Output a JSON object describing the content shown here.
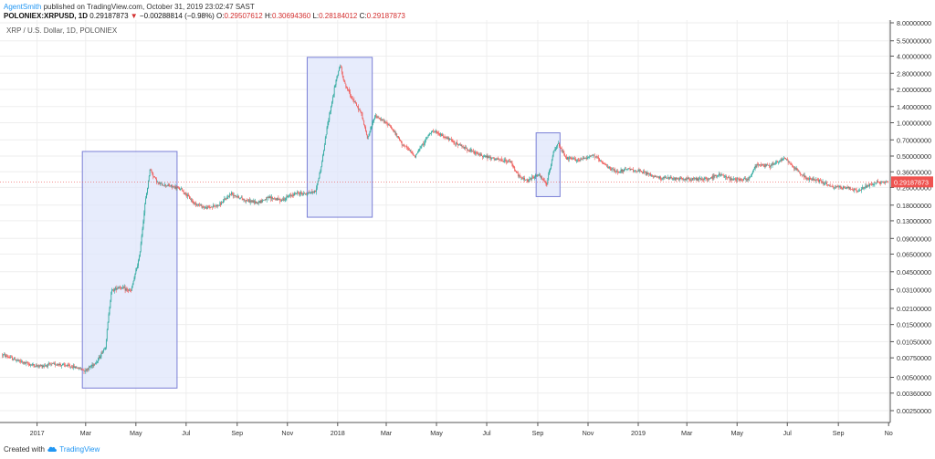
{
  "header": {
    "author": "AgentSmith",
    "published_text": "published on TradingView.com, October 31, 2019 23:02:47 SAST",
    "symbol": "POLONIEX:XRPUSD, 1D",
    "last": "0.29187873",
    "change": "−0.00288814 (−0.98%)",
    "o_label": "O:",
    "o_value": "0.29507612",
    "h_label": "H:",
    "h_value": "0.30694360",
    "l_label": "L:",
    "l_value": "0.28184012",
    "c_label": "C:",
    "c_value": "0.29187873"
  },
  "footer": {
    "created_with": "Created with",
    "brand": "TradingView"
  },
  "chart_data": {
    "type": "candlestick",
    "title": "XRP / U.S. Dollar, 1D, POLONIEX",
    "y_scale": "log",
    "y_ticks": [
      8.0,
      5.5,
      4.0,
      2.8,
      2.0,
      1.4,
      1.0,
      0.7,
      0.5,
      0.36,
      0.26,
      0.18,
      0.13,
      0.09,
      0.065,
      0.045,
      0.031,
      0.021,
      0.015,
      0.0105,
      0.0075,
      0.005,
      0.0036,
      0.0025
    ],
    "y_tick_labels": [
      "8.00000000",
      "5.50000000",
      "4.00000000",
      "2.80000000",
      "2.00000000",
      "1.40000000",
      "1.00000000",
      "0.70000000",
      "0.50000000",
      "0.36000000",
      "0.26000000",
      "0.18000000",
      "0.13000000",
      "0.09000000",
      "0.06500000",
      "0.04500000",
      "0.03100000",
      "0.02100000",
      "0.01500000",
      "0.01050000",
      "0.00750000",
      "0.00500000",
      "0.00360000",
      "0.00250000"
    ],
    "x_ticks": [
      "2017",
      "Mar",
      "May",
      "Jul",
      "Sep",
      "Nov",
      "2018",
      "Mar",
      "May",
      "Jul",
      "Sep",
      "Nov",
      "2019",
      "Mar",
      "May",
      "Jul",
      "Sep",
      "No"
    ],
    "last_price": 0.29187873,
    "last_price_label": "0.29187873",
    "price_path": [
      [
        "2016-11-20",
        0.008
      ],
      [
        "2016-12-15",
        0.0068
      ],
      [
        "2017-01-01",
        0.0063
      ],
      [
        "2017-01-25",
        0.0066
      ],
      [
        "2017-02-15",
        0.0062
      ],
      [
        "2017-03-01",
        0.0058
      ],
      [
        "2017-03-15",
        0.007
      ],
      [
        "2017-03-25",
        0.0095
      ],
      [
        "2017-04-01",
        0.03
      ],
      [
        "2017-04-10",
        0.033
      ],
      [
        "2017-04-25",
        0.03
      ],
      [
        "2017-05-05",
        0.06
      ],
      [
        "2017-05-12",
        0.18
      ],
      [
        "2017-05-18",
        0.38
      ],
      [
        "2017-05-28",
        0.28
      ],
      [
        "2017-06-10",
        0.27
      ],
      [
        "2017-06-25",
        0.25
      ],
      [
        "2017-07-10",
        0.19
      ],
      [
        "2017-07-25",
        0.17
      ],
      [
        "2017-08-10",
        0.18
      ],
      [
        "2017-08-25",
        0.23
      ],
      [
        "2017-09-10",
        0.2
      ],
      [
        "2017-09-25",
        0.19
      ],
      [
        "2017-10-10",
        0.21
      ],
      [
        "2017-10-25",
        0.2
      ],
      [
        "2017-11-10",
        0.23
      ],
      [
        "2017-11-25",
        0.23
      ],
      [
        "2017-12-05",
        0.24
      ],
      [
        "2017-12-12",
        0.4
      ],
      [
        "2017-12-20",
        1.0
      ],
      [
        "2017-12-30",
        2.4
      ],
      [
        "2018-01-04",
        3.3
      ],
      [
        "2018-01-10",
        2.2
      ],
      [
        "2018-01-20",
        1.6
      ],
      [
        "2018-01-30",
        1.2
      ],
      [
        "2018-02-06",
        0.72
      ],
      [
        "2018-02-15",
        1.15
      ],
      [
        "2018-03-05",
        0.95
      ],
      [
        "2018-03-20",
        0.65
      ],
      [
        "2018-04-05",
        0.5
      ],
      [
        "2018-04-25",
        0.85
      ],
      [
        "2018-05-10",
        0.75
      ],
      [
        "2018-05-30",
        0.62
      ],
      [
        "2018-06-20",
        0.52
      ],
      [
        "2018-07-10",
        0.47
      ],
      [
        "2018-07-30",
        0.44
      ],
      [
        "2018-08-10",
        0.32
      ],
      [
        "2018-08-20",
        0.3
      ],
      [
        "2018-09-01",
        0.34
      ],
      [
        "2018-09-12",
        0.28
      ],
      [
        "2018-09-20",
        0.55
      ],
      [
        "2018-09-25",
        0.65
      ],
      [
        "2018-10-05",
        0.48
      ],
      [
        "2018-10-20",
        0.46
      ],
      [
        "2018-11-08",
        0.51
      ],
      [
        "2018-11-20",
        0.42
      ],
      [
        "2018-12-05",
        0.36
      ],
      [
        "2018-12-20",
        0.38
      ],
      [
        "2019-01-05",
        0.36
      ],
      [
        "2019-01-25",
        0.32
      ],
      [
        "2019-02-15",
        0.31
      ],
      [
        "2019-03-05",
        0.31
      ],
      [
        "2019-03-25",
        0.31
      ],
      [
        "2019-04-10",
        0.34
      ],
      [
        "2019-04-25",
        0.31
      ],
      [
        "2019-05-15",
        0.31
      ],
      [
        "2019-05-25",
        0.42
      ],
      [
        "2019-06-10",
        0.41
      ],
      [
        "2019-06-28",
        0.48
      ],
      [
        "2019-07-10",
        0.39
      ],
      [
        "2019-07-25",
        0.31
      ],
      [
        "2019-08-10",
        0.3
      ],
      [
        "2019-08-25",
        0.26
      ],
      [
        "2019-09-10",
        0.26
      ],
      [
        "2019-09-25",
        0.24
      ],
      [
        "2019-10-10",
        0.28
      ],
      [
        "2019-10-20",
        0.29
      ],
      [
        "2019-10-31",
        0.2919
      ]
    ],
    "highlight_boxes": [
      {
        "from": "2017-02-25",
        "to": "2017-06-20",
        "low": 0.004,
        "high": 0.55
      },
      {
        "from": "2017-11-25",
        "to": "2018-02-12",
        "low": 0.14,
        "high": 3.9
      },
      {
        "from": "2018-08-30",
        "to": "2018-09-28",
        "low": 0.215,
        "high": 0.81
      }
    ],
    "colors": {
      "up": "#26a69a",
      "down": "#ef5350",
      "grid": "#eeeeee",
      "box_fill": "#dfe6fb",
      "box_stroke": "#7a7fd6",
      "last_price_bg": "#ef5350"
    }
  }
}
